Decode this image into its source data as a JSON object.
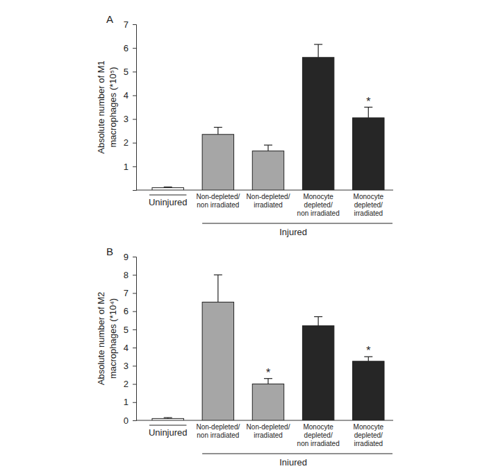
{
  "chart_data": [
    {
      "type": "bar",
      "title": "A",
      "y_label": "Absolute number of M1\nmacrophages (*10⁵)",
      "categories": [
        null,
        "Non-depleted/\nnon irradiated",
        "Non-depleted/\nirradiated",
        "Monocyte\ndepleted/\nnon irradiated",
        "Monocyte\ndepleted/\nirradiated"
      ],
      "values": [
        0.1,
        2.35,
        1.65,
        5.6,
        3.05
      ],
      "errors": [
        0.03,
        0.3,
        0.25,
        0.55,
        0.45
      ],
      "colors": [
        "#ffffff",
        "#a6a6a6",
        "#a6a6a6",
        "#262626",
        "#262626"
      ],
      "ylim": [
        0,
        7
      ],
      "yticks": [
        1,
        2,
        3,
        4,
        5,
        6,
        7
      ],
      "grid": false,
      "groups": [
        {
          "label": "Uninjured",
          "from": 0,
          "to": 0
        },
        {
          "label": "Injured",
          "from": 1,
          "to": 4
        }
      ],
      "annotations": [
        {
          "text": "*",
          "x": 4
        }
      ]
    },
    {
      "type": "bar",
      "title": "B",
      "y_label": "Absolute number of M2\nmacrophages (*10⁴)",
      "categories": [
        null,
        "Non-depleted/\nnon irradiated",
        "Non-depleted/\nirradiated",
        "Monocyte\ndepleted/\nnon irradiated",
        "Monocyte\ndepleted/\nirradiated"
      ],
      "values": [
        0.1,
        6.5,
        2.0,
        5.2,
        3.25
      ],
      "errors": [
        0.05,
        1.5,
        0.3,
        0.5,
        0.25
      ],
      "colors": [
        "#ffffff",
        "#a6a6a6",
        "#a6a6a6",
        "#262626",
        "#262626"
      ],
      "ylim": [
        0,
        9
      ],
      "yticks": [
        0,
        1,
        2,
        3,
        4,
        5,
        6,
        7,
        8,
        9
      ],
      "grid": false,
      "groups": [
        {
          "label": "Uninjured",
          "from": 0,
          "to": 0
        },
        {
          "label": "Iniured",
          "from": 1,
          "to": 4
        }
      ],
      "annotations": [
        {
          "text": "*",
          "x": 2
        },
        {
          "text": "*",
          "x": 4
        }
      ]
    }
  ]
}
